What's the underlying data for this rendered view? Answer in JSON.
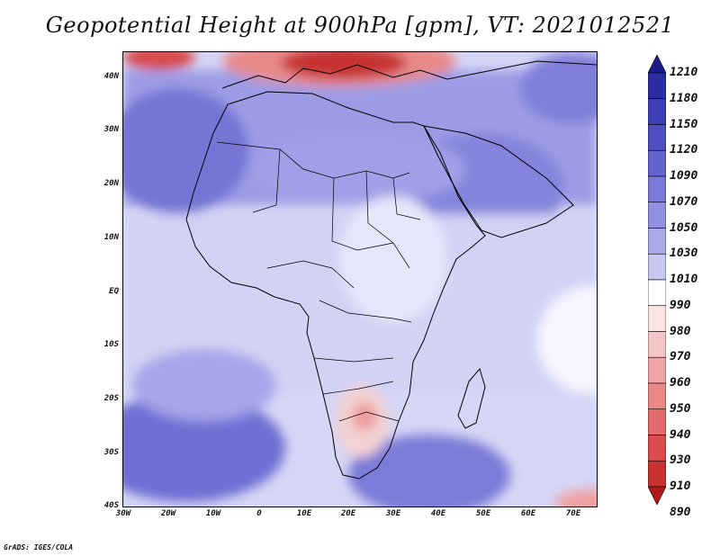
{
  "title": "Geopotential Height at 900hPa [gpm], VT: 2021012521",
  "footer": "GrADS: IGES/COLA",
  "map": {
    "region": "Africa",
    "lat_labels": [
      "40N",
      "30N",
      "20N",
      "10N",
      "EQ",
      "10S",
      "20S",
      "30S",
      "40S"
    ],
    "lon_labels": [
      "30W",
      "20W",
      "10W",
      "0",
      "10E",
      "20E",
      "30E",
      "40E",
      "50E",
      "60E",
      "70E"
    ]
  },
  "colorbar": {
    "levels": [
      "1210",
      "1180",
      "1150",
      "1120",
      "1090",
      "1070",
      "1050",
      "1030",
      "1010",
      "990",
      "980",
      "970",
      "960",
      "950",
      "940",
      "930",
      "910",
      "890"
    ],
    "colors": [
      "#1a1a8c",
      "#2d2da3",
      "#3d3db5",
      "#4f4fc2",
      "#6464cf",
      "#7a7ad9",
      "#9191e2",
      "#aaaaeb",
      "#c8c8f3",
      "#ffffff",
      "#fbe3e3",
      "#f6c5c5",
      "#f0a6a6",
      "#ea8888",
      "#e36a6a",
      "#dc4c4c",
      "#c93030",
      "#b01818"
    ]
  }
}
